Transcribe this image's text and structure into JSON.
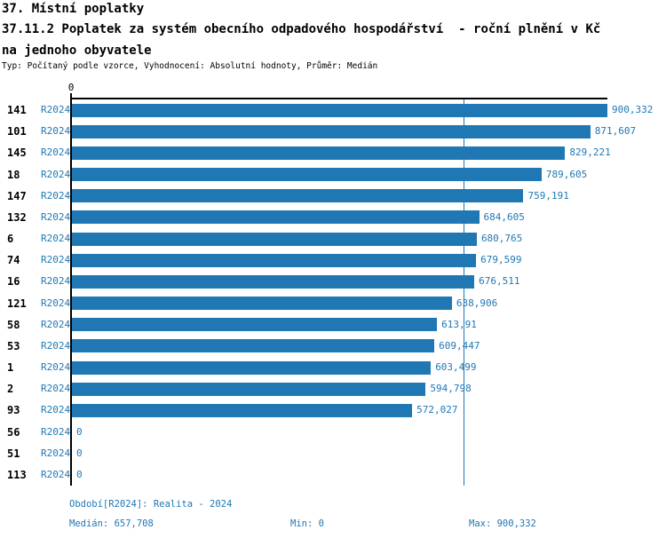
{
  "header": {
    "title_line1": "37. Místní poplatky",
    "title_line2": "37.11.2 Poplatek za systém obecního odpadového hospodářství  - roční plnění v Kč",
    "title_line3": "na jednoho obyvatele",
    "meta": "Typ: Počítaný podle vzorce, Vyhodnocení: Absolutní hodnoty, Průměr: Medián"
  },
  "chart_data": {
    "type": "bar",
    "orientation": "horizontal",
    "title": "37.11.2 Poplatek za systém obecního odpadového hospodářství - roční plnění v Kč na jednoho obyvatele",
    "series_label": "R2024",
    "axis_zero_label": "0",
    "xlim": [
      0,
      900.332
    ],
    "median_value": 657.708,
    "grid": "off",
    "categories": [
      "141",
      "101",
      "145",
      "18",
      "147",
      "132",
      "6",
      "74",
      "16",
      "121",
      "58",
      "53",
      "1",
      "2",
      "93",
      "56",
      "51",
      "113"
    ],
    "values": [
      900.332,
      871.607,
      829.221,
      789.605,
      759.191,
      684.605,
      680.765,
      679.599,
      676.511,
      638.906,
      613.91,
      609.447,
      603.499,
      594.798,
      572.027,
      0,
      0,
      0
    ],
    "value_labels": [
      "900,332",
      "871,607",
      "829,221",
      "789,605",
      "759,191",
      "684,605",
      "680,765",
      "679,599",
      "676,511",
      "638,906",
      "613,91",
      "609,447",
      "603,499",
      "594,798",
      "572,027",
      "0",
      "0",
      "0"
    ],
    "colors": {
      "bar": "#1f77b4",
      "blue_text": "#1f77b4",
      "axis": "#000000"
    }
  },
  "footer": {
    "period": "Období[R2024]: Realita - 2024",
    "median": "Medián: 657,708",
    "min": "Min: 0",
    "max": "Max: 900,332"
  }
}
